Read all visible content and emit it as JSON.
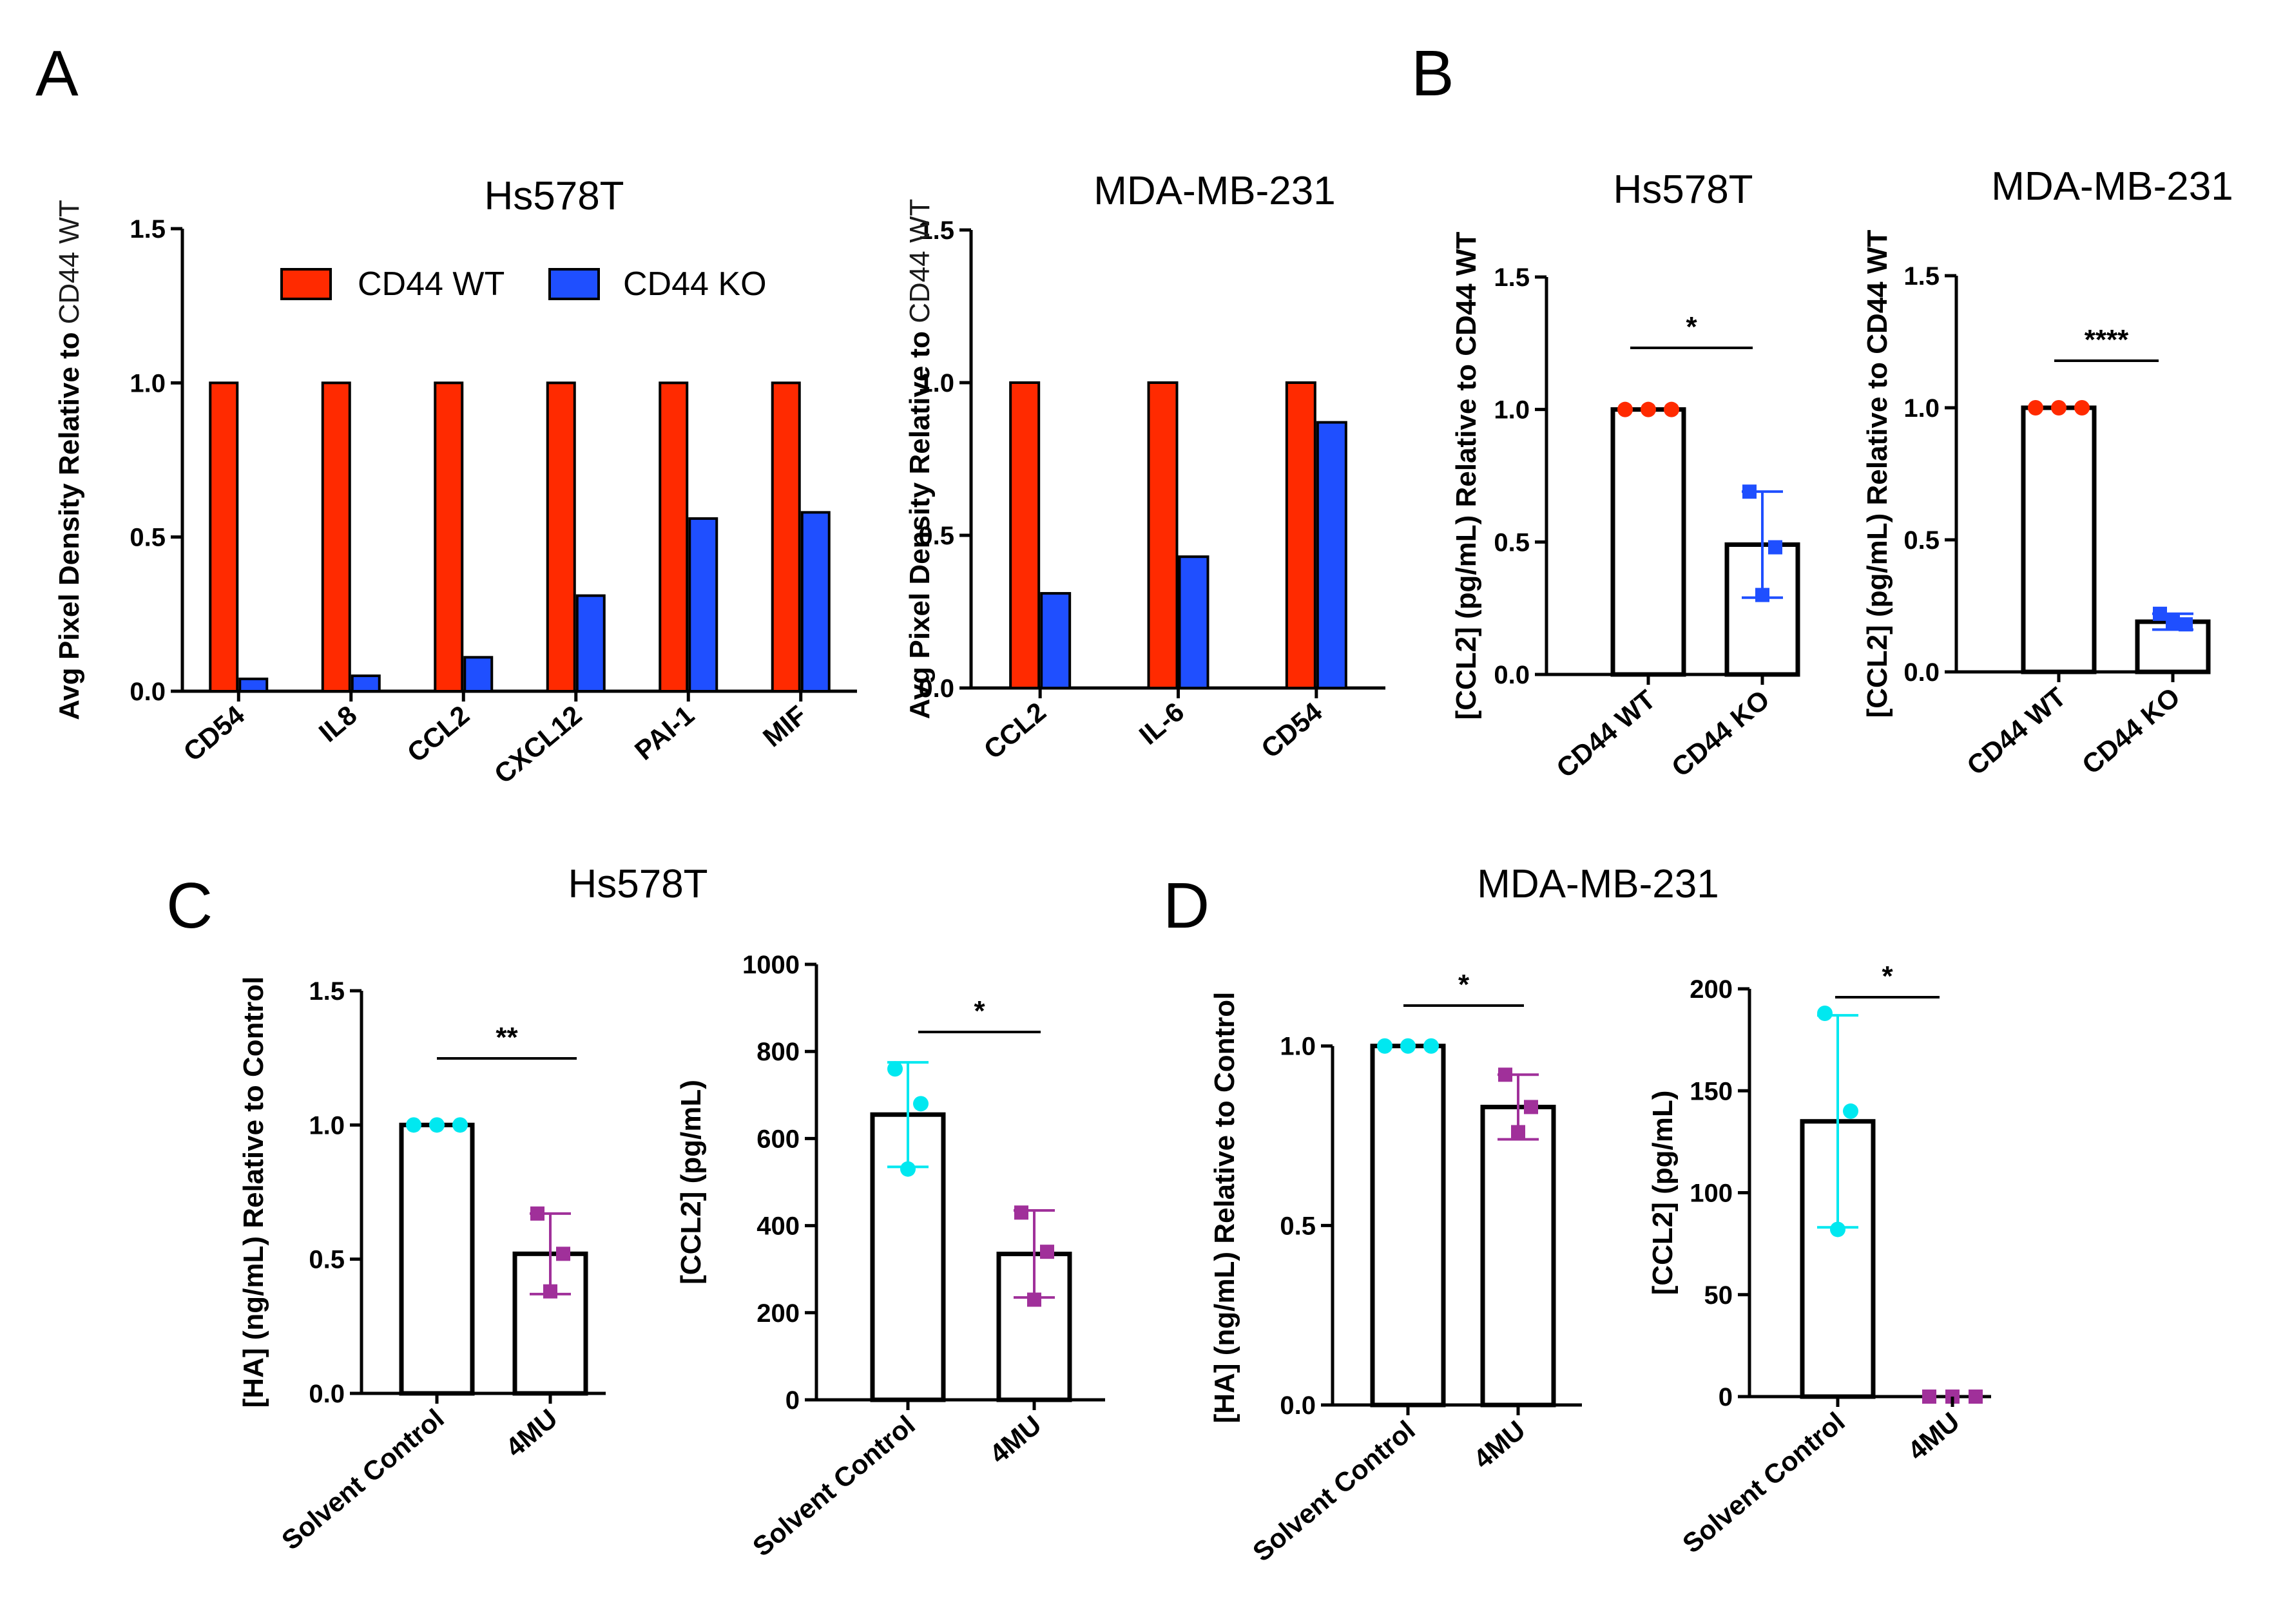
{
  "panel_letters": {
    "a": "A",
    "b": "B",
    "c": "C",
    "d": "D"
  },
  "group_titles": {
    "c": "Hs578T",
    "d": "MDA-MB-231"
  },
  "chart_data": [
    {
      "id": "A1",
      "type": "bar",
      "title": "Hs578T",
      "ylabel_main": "Avg Pixel Density Relative to ",
      "ylabel_tail": "CD44 WT",
      "ylim": [
        0,
        1.5
      ],
      "yticks": [
        0.0,
        0.5,
        1.0,
        1.5
      ],
      "yticklabels": [
        "0.0",
        "0.5",
        "1.0",
        "1.5"
      ],
      "categories": [
        "CD54",
        "IL8",
        "CCL2",
        "CXCL12",
        "PAI-1",
        "MIF"
      ],
      "series": [
        {
          "name": "CD44 WT",
          "color": "#ff2a00",
          "values": [
            1.0,
            1.0,
            1.0,
            1.0,
            1.0,
            1.0
          ]
        },
        {
          "name": "CD44 KO",
          "color": "#1f4fff",
          "values": [
            0.04,
            0.05,
            0.11,
            0.31,
            0.56,
            0.58
          ]
        }
      ],
      "legend": "top"
    },
    {
      "id": "A2",
      "type": "bar",
      "title": "MDA-MB-231",
      "ylabel_main": "Avg Pixel Density Relative to ",
      "ylabel_tail": "CD44 WT",
      "ylim": [
        0,
        1.5
      ],
      "yticks": [
        0.0,
        0.5,
        1.0,
        1.5
      ],
      "yticklabels": [
        "0.0",
        "0.5",
        "1.0",
        "1.5"
      ],
      "categories": [
        "CCL2",
        "IL-6",
        "CD54"
      ],
      "series": [
        {
          "name": "CD44 WT",
          "color": "#ff2a00",
          "values": [
            1.0,
            1.0,
            1.0
          ]
        },
        {
          "name": "CD44 KO",
          "color": "#1f4fff",
          "values": [
            0.31,
            0.43,
            0.87
          ]
        }
      ]
    },
    {
      "id": "B1",
      "type": "bar",
      "title": "Hs578T",
      "ylabel": "[CCL2] (pg/mL) Relative to CD44 WT",
      "ylim": [
        0,
        1.5
      ],
      "yticks": [
        0.0,
        0.5,
        1.0,
        1.5
      ],
      "yticklabels": [
        "0.0",
        "0.5",
        "1.0",
        "1.5"
      ],
      "categories": [
        "CD44 WT",
        "CD44 KO"
      ],
      "values": [
        1.0,
        0.49
      ],
      "errors": [
        0,
        0.2
      ],
      "points": [
        [
          1.0,
          1.0,
          1.0
        ],
        [
          0.69,
          0.48,
          0.3
        ]
      ],
      "point_colors": [
        "#ff2a00",
        "#1f4fff"
      ],
      "point_shapes": [
        "circle",
        "square"
      ],
      "significance": "*"
    },
    {
      "id": "B2",
      "type": "bar",
      "title": "MDA-MB-231",
      "ylabel": "[CCL2] (pg/mL) Relative to CD44 WT",
      "ylim": [
        0,
        1.5
      ],
      "yticks": [
        0.0,
        0.5,
        1.0,
        1.5
      ],
      "yticklabels": [
        "0.0",
        "0.5",
        "1.0",
        "1.5"
      ],
      "categories": [
        "CD44 WT",
        "CD44 KO"
      ],
      "values": [
        1.0,
        0.19
      ],
      "errors": [
        0,
        0.03
      ],
      "points": [
        [
          1.0,
          1.0,
          1.0
        ],
        [
          0.22,
          0.18,
          0.19
        ]
      ],
      "point_colors": [
        "#ff2a00",
        "#1f4fff"
      ],
      "point_shapes": [
        "circle",
        "square"
      ],
      "significance": "****"
    },
    {
      "id": "C1",
      "type": "bar",
      "ylabel": "[HA] (ng/mL) Relative to Control",
      "ylim": [
        0,
        1.5
      ],
      "yticks": [
        0.0,
        0.5,
        1.0,
        1.5
      ],
      "yticklabels": [
        "0.0",
        "0.5",
        "1.0",
        "1.5"
      ],
      "categories": [
        "Solvent Control",
        "4MU"
      ],
      "values": [
        1.0,
        0.52
      ],
      "errors": [
        0,
        0.15
      ],
      "points": [
        [
          1.0,
          1.0,
          1.0
        ],
        [
          0.67,
          0.52,
          0.38
        ]
      ],
      "point_colors": [
        "#00e8f0",
        "#a0309a"
      ],
      "point_shapes": [
        "circle",
        "square"
      ],
      "significance": "**"
    },
    {
      "id": "C2",
      "type": "bar",
      "ylabel": "[CCL2] (pg/mL)",
      "ylim": [
        0,
        1000
      ],
      "yticks": [
        0,
        200,
        400,
        600,
        800,
        1000
      ],
      "yticklabels": [
        "0",
        "200",
        "400",
        "600",
        "800",
        "1000"
      ],
      "categories": [
        "Solvent Control",
        "4MU"
      ],
      "values": [
        655,
        335
      ],
      "errors": [
        120,
        100
      ],
      "points": [
        [
          760,
          680,
          530
        ],
        [
          430,
          340,
          230
        ]
      ],
      "point_colors": [
        "#00e8f0",
        "#a0309a"
      ],
      "point_shapes": [
        "circle",
        "square"
      ],
      "significance": "*"
    },
    {
      "id": "D1",
      "type": "bar",
      "ylabel": "[HA] (ng/mL) Relative to Control",
      "ylim": [
        0,
        1.1
      ],
      "yticks": [
        0.0,
        0.5,
        1.0
      ],
      "yticklabels": [
        "0.0",
        "0.5",
        "1.0"
      ],
      "categories": [
        "Solvent Control",
        "4MU"
      ],
      "values": [
        1.0,
        0.83
      ],
      "errors": [
        0,
        0.09
      ],
      "points": [
        [
          1.0,
          1.0,
          1.0
        ],
        [
          0.92,
          0.83,
          0.76
        ]
      ],
      "point_colors": [
        "#00e8f0",
        "#a0309a"
      ],
      "point_shapes": [
        "circle",
        "square"
      ],
      "significance": "*"
    },
    {
      "id": "D2",
      "type": "bar",
      "ylabel": "[CCL2] (pg/mL)",
      "ylim": [
        0,
        200
      ],
      "yticks": [
        0,
        50,
        100,
        150,
        200
      ],
      "yticklabels": [
        "0",
        "50",
        "100",
        "150",
        "200"
      ],
      "categories": [
        "Solvent Control",
        "4MU"
      ],
      "values": [
        135,
        0
      ],
      "errors": [
        52,
        0
      ],
      "points": [
        [
          188,
          140,
          82
        ],
        [
          0,
          0,
          0
        ]
      ],
      "point_colors": [
        "#00e8f0",
        "#a0309a"
      ],
      "point_shapes": [
        "circle",
        "square"
      ],
      "significance": "*"
    }
  ]
}
